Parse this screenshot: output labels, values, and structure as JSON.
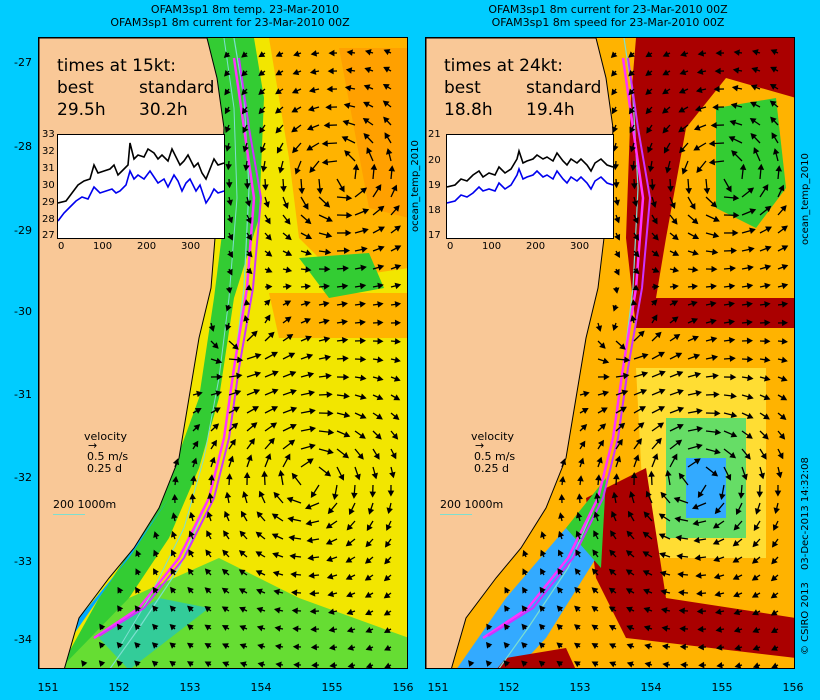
{
  "left": {
    "title_line1": "OFAM3sp1 8m temp. 23-Mar-2010",
    "title_line2": "OFAM3sp1 8m current for 23-Mar-2010 00Z",
    "times_heading": "times at 15kt:",
    "best_label": "best",
    "standard_label": "standard",
    "best_value": "29.5h",
    "standard_value": "30.2h",
    "inset_ylabels": [
      "33",
      "32",
      "31",
      "30",
      "29",
      "28",
      "27"
    ],
    "inset_xlabels": [
      "0",
      "100",
      "200",
      "300"
    ],
    "velocity_label": "velocity",
    "velocity_speed": "0.5 m/s",
    "velocity_time": "0.25 d",
    "depth_scale": "200  1000m"
  },
  "right": {
    "title_line1": "OFAM3sp1 8m current for 23-Mar-2010 00Z",
    "title_line2": "OFAM3sp1 8m speed for 23-Mar-2010 00Z",
    "times_heading": "times at 24kt:",
    "best_label": "best",
    "standard_label": "standard",
    "best_value": "18.8h",
    "standard_value": "19.4h",
    "inset_ylabels": [
      "21",
      "20",
      "19",
      "18",
      "17"
    ],
    "inset_xlabels": [
      "0",
      "100",
      "200",
      "300"
    ],
    "velocity_label": "velocity",
    "velocity_speed": "0.5 m/s",
    "velocity_time": "0.25 d",
    "depth_scale": "200  1000m"
  },
  "lat_labels": [
    "-27",
    "-28",
    "-29",
    "-30",
    "-31",
    "-32",
    "-33",
    "-34"
  ],
  "lon_labels": [
    "151",
    "152",
    "153",
    "154",
    "155",
    "156"
  ],
  "side_label_left": "ocean_temp_2010",
  "side_label_right": "ocean_temp_2010",
  "credit": "© CSIRO 2013",
  "timestamp": "03-Dec-2013 14:32:08",
  "colors": {
    "background": "#00ccff",
    "land": "#f9c897",
    "route": "#ff33ff",
    "warm": "#ffb300",
    "hot": "#aa0000"
  }
}
